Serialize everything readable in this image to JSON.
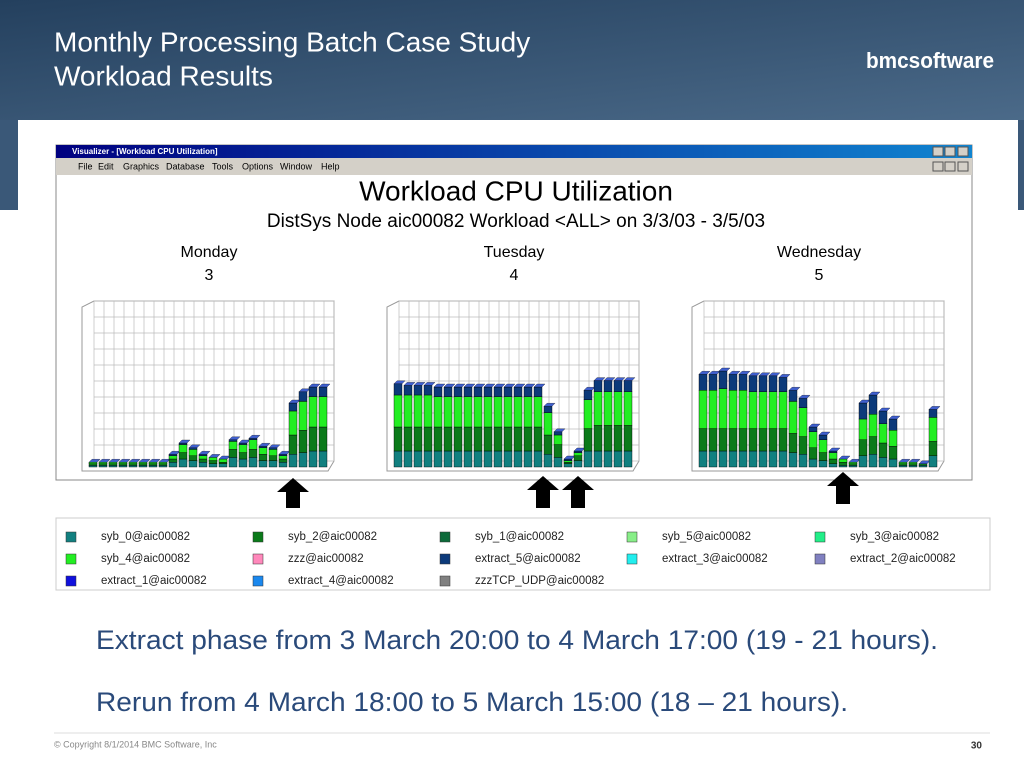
{
  "slide": {
    "title_lines": [
      "Monthly Processing Batch Case Study",
      "Workload Results"
    ],
    "logo": "bmcsoftware",
    "notes": [
      "Extract phase from 3 March 20:00 to 4 March 17:00 (19 - 21 hours).",
      "Rerun from 4 March 18:00 to 5 March 15:00 (18 – 21 hours)."
    ],
    "copyright": "© Copyright 8/1/2014 BMC Software, Inc",
    "page": "30"
  },
  "window": {
    "title": "Visualizer - [Workload CPU Utilization]",
    "menu": [
      "File",
      "Edit",
      "Graphics",
      "Database",
      "Tools",
      "Options",
      "Window",
      "Help"
    ]
  },
  "chart_data": {
    "type": "bar",
    "stacked": true,
    "title": "Workload CPU Utilization",
    "subtitle": "DistSys Node aic00082 Workload <ALL> on 3/3/03 - 3/5/03",
    "ylim": [
      0,
      100
    ],
    "panels": [
      {
        "day": "Monday",
        "date": "3"
      },
      {
        "day": "Tuesday",
        "date": "4"
      },
      {
        "day": "Wednesday",
        "date": "5"
      }
    ],
    "series": [
      {
        "name": "syb_0@aic00082",
        "color": "#128080",
        "values": [
          [
            1,
            1,
            1,
            1,
            1,
            1,
            1,
            1,
            3,
            5,
            4,
            3,
            2,
            2,
            6,
            5,
            6,
            4,
            4,
            3,
            8,
            9,
            10,
            10
          ],
          [
            10,
            10,
            10,
            10,
            10,
            10,
            10,
            10,
            10,
            10,
            10,
            10,
            10,
            10,
            10,
            8,
            6,
            2,
            4,
            10,
            10,
            10,
            10,
            10
          ],
          [
            10,
            10,
            10,
            10,
            10,
            10,
            10,
            10,
            10,
            9,
            8,
            5,
            4,
            2,
            1,
            1,
            7,
            8,
            6,
            5,
            1,
            1,
            1,
            7
          ]
        ]
      },
      {
        "name": "syb_2@aic00082",
        "color": "#0b7a1a",
        "values": [
          [
            1,
            1,
            1,
            1,
            1,
            1,
            1,
            1,
            2,
            4,
            3,
            2,
            2,
            1,
            5,
            4,
            5,
            4,
            3,
            2,
            12,
            14,
            15,
            15
          ],
          [
            15,
            15,
            15,
            15,
            15,
            15,
            15,
            15,
            15,
            15,
            15,
            15,
            15,
            15,
            15,
            12,
            8,
            1,
            3,
            14,
            16,
            16,
            16,
            16
          ],
          [
            14,
            14,
            14,
            14,
            14,
            14,
            14,
            14,
            14,
            12,
            11,
            7,
            5,
            3,
            2,
            1,
            10,
            11,
            9,
            8,
            1,
            1,
            1,
            9
          ]
        ]
      },
      {
        "name": "syb_1@aic00082",
        "color": "#0d6a3a"
      },
      {
        "name": "syb_5@aic00082",
        "color": "#88ee88"
      },
      {
        "name": "syb_3@aic00082",
        "color": "#22ee88"
      },
      {
        "name": "syb_4@aic00082",
        "color": "#22ee22",
        "values": [
          [
            1,
            1,
            1,
            1,
            1,
            1,
            1,
            1,
            2,
            5,
            4,
            2,
            2,
            2,
            5,
            5,
            6,
            4,
            4,
            2,
            15,
            18,
            19,
            19
          ],
          [
            20,
            20,
            20,
            20,
            19,
            19,
            19,
            19,
            19,
            19,
            19,
            19,
            19,
            19,
            19,
            14,
            6,
            1,
            2,
            18,
            21,
            21,
            21,
            21
          ],
          [
            24,
            24,
            25,
            24,
            24,
            23,
            23,
            23,
            23,
            20,
            18,
            10,
            8,
            4,
            2,
            1,
            13,
            14,
            12,
            10,
            1,
            1,
            0,
            15
          ]
        ]
      },
      {
        "name": "zzz@aic00082",
        "color": "#ff88bb"
      },
      {
        "name": "extract_5@aic00082",
        "color": "#0c3a7a",
        "values": [
          [
            0,
            0,
            0,
            0,
            0,
            0,
            0,
            0,
            1,
            1,
            1,
            1,
            0,
            0,
            1,
            1,
            1,
            1,
            1,
            1,
            5,
            6,
            6,
            6
          ],
          [
            7,
            6,
            6,
            6,
            6,
            6,
            6,
            6,
            6,
            6,
            6,
            6,
            6,
            6,
            6,
            4,
            2,
            1,
            1,
            6,
            7,
            7,
            7,
            7
          ],
          [
            10,
            10,
            11,
            10,
            10,
            10,
            10,
            10,
            9,
            7,
            6,
            3,
            3,
            1,
            0,
            0,
            10,
            12,
            8,
            7,
            0,
            0,
            0,
            5
          ]
        ]
      },
      {
        "name": "extract_3@aic00082",
        "color": "#22eeee"
      },
      {
        "name": "extract_2@aic00082",
        "color": "#8080c0"
      },
      {
        "name": "extract_1@aic00082",
        "color": "#1010dd"
      },
      {
        "name": "extract_4@aic00082",
        "color": "#1a88ee"
      },
      {
        "name": "zzzTCP_UDP@aic00082",
        "color": "#808080"
      }
    ]
  }
}
